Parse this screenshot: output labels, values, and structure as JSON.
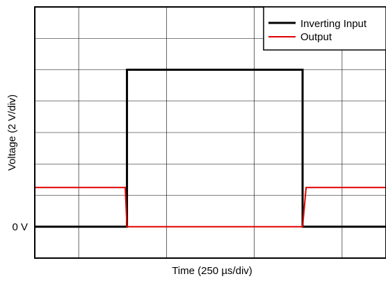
{
  "chart_data": {
    "type": "line",
    "xlabel": "Time (250 µs/div)",
    "ylabel": "Voltage (2 V/div)",
    "x_unit_per_div": 250,
    "y_unit_per_div": 2,
    "xlim": [
      0,
      2000
    ],
    "ylim": [
      -2,
      14
    ],
    "y_tick_labels": [
      {
        "value": 0,
        "label": "0 V"
      }
    ],
    "grid": true,
    "legend_position": "top-right",
    "series": [
      {
        "name": "Inverting Input",
        "color": "#000000",
        "points": [
          [
            0,
            0
          ],
          [
            525,
            0
          ],
          [
            525,
            10
          ],
          [
            1525,
            10
          ],
          [
            1525,
            0
          ],
          [
            2000,
            0
          ]
        ]
      },
      {
        "name": "Output",
        "color": "#e00000",
        "points": [
          [
            0,
            2.5
          ],
          [
            515,
            2.5
          ],
          [
            525,
            0
          ],
          [
            1525,
            0
          ],
          [
            1545,
            2.5
          ],
          [
            2000,
            2.5
          ]
        ]
      }
    ]
  }
}
